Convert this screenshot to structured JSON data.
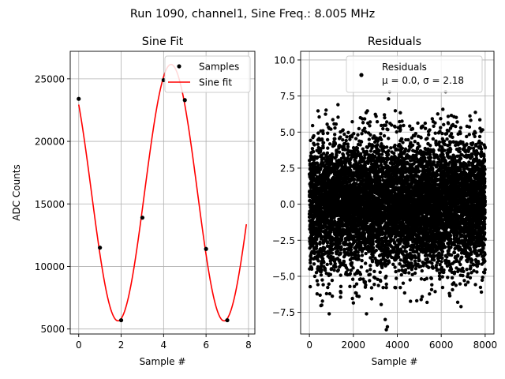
{
  "suptitle": "Run 1090, channel1, Sine Freq.: 8.005 MHz",
  "chart_data": [
    {
      "type": "line",
      "title": "Sine Fit",
      "xlabel": "Sample #",
      "ylabel": "ADC Counts",
      "xlim": [
        -0.4,
        8.3
      ],
      "ylim": [
        4600,
        27200
      ],
      "xticks": [
        0,
        2,
        4,
        6,
        8
      ],
      "yticks": [
        5000,
        10000,
        15000,
        20000,
        25000
      ],
      "grid": true,
      "legend_position": "top-right",
      "series": [
        {
          "name": "Samples",
          "kind": "scatter",
          "color": "#000000",
          "x": [
            0,
            1,
            2,
            3,
            4,
            5,
            6,
            7
          ],
          "y": [
            23400,
            11500,
            5700,
            13900,
            24900,
            23300,
            11400,
            5700
          ]
        },
        {
          "name": "Sine fit",
          "kind": "line",
          "color": "#ff0000",
          "model": {
            "offset": 15900,
            "amplitude": 10250,
            "samples_per_cycle": 4.997,
            "peak_x": 4.35,
            "x_range": [
              0,
              7.9
            ]
          }
        }
      ]
    },
    {
      "type": "scatter",
      "title": "Residuals",
      "xlabel": "Sample #",
      "ylabel": "",
      "xlim": [
        -400,
        8400
      ],
      "ylim": [
        -9.0,
        10.6
      ],
      "xticks": [
        0,
        2000,
        4000,
        6000,
        8000
      ],
      "yticks": [
        -7.5,
        -5.0,
        -2.5,
        0.0,
        2.5,
        5.0,
        7.5,
        10.0
      ],
      "grid": true,
      "legend_position": "top-right",
      "series": [
        {
          "name": "Residuals",
          "stats_label": "μ = 0.0, σ = 2.18",
          "color": "#000000",
          "count": 8000,
          "mean": 0.0,
          "std": 2.18,
          "x_range": [
            0,
            7999
          ],
          "outliers": [
            {
              "x": 3650,
              "y": 7.8
            },
            {
              "x": 3600,
              "y": 7.3
            },
            {
              "x": 6200,
              "y": 7.8
            },
            {
              "x": 1300,
              "y": 6.9
            },
            {
              "x": 3500,
              "y": -8.7
            },
            {
              "x": 3550,
              "y": -8.5
            },
            {
              "x": 3450,
              "y": -8.0
            },
            {
              "x": 2600,
              "y": -7.6
            },
            {
              "x": 900,
              "y": -7.6
            },
            {
              "x": 6900,
              "y": -7.1
            },
            {
              "x": 6750,
              "y": -6.8
            },
            {
              "x": 560,
              "y": -7.0
            }
          ]
        }
      ]
    }
  ]
}
